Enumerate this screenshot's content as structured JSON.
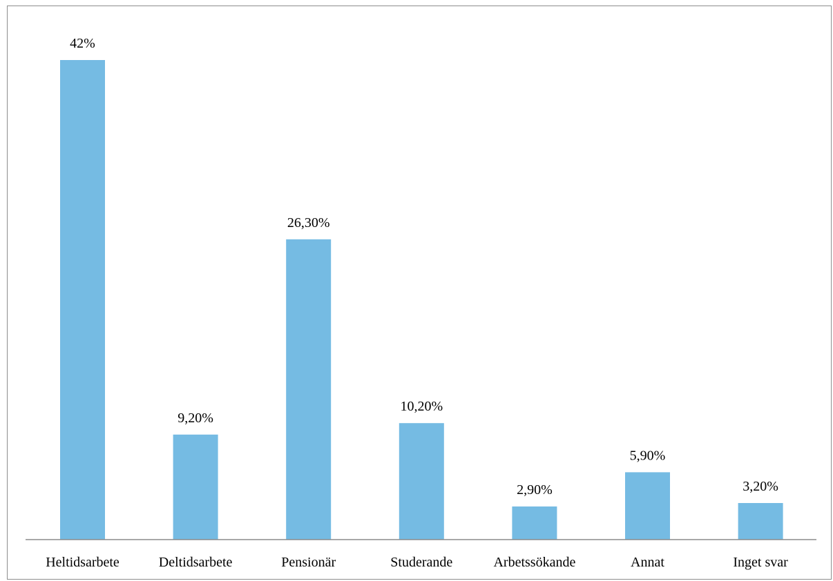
{
  "chart_data": {
    "type": "bar",
    "title": "",
    "xlabel": "",
    "ylabel": "",
    "categories": [
      "Heltidsarbete",
      "Deltidsarbete",
      "Pensionär",
      "Studerande",
      "Arbetssökande",
      "Annat",
      "Inget svar"
    ],
    "values": [
      42,
      9.2,
      26.3,
      10.2,
      2.9,
      5.9,
      3.2
    ],
    "data_labels": [
      "42%",
      "9,20%",
      "26,30%",
      "10,20%",
      "2,90%",
      "5,90%",
      "3,20%"
    ],
    "ylim": [
      0,
      42
    ],
    "grid": false,
    "legend": "none",
    "bar_color": "#75bbe3",
    "axis_color": "#8c8c8c"
  }
}
